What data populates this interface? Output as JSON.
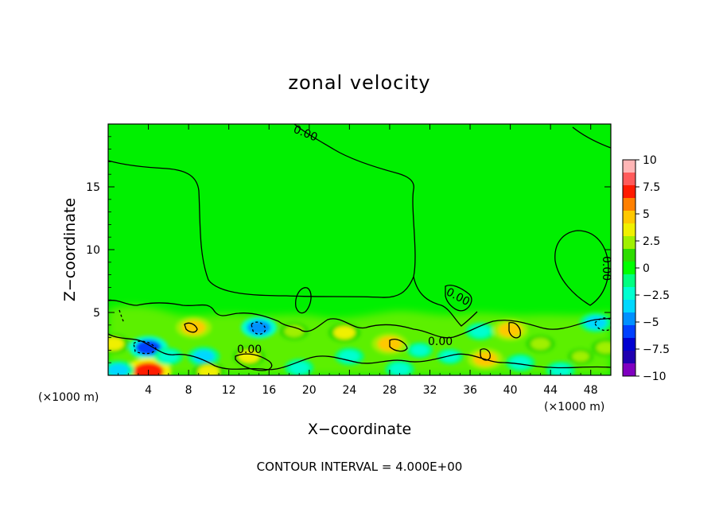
{
  "chart_data": {
    "type": "heatmap",
    "title": "zonal velocity",
    "xlabel": "X−coordinate",
    "ylabel": "Z−coordinate",
    "x_unit_left": "(×1000 m)",
    "x_unit_right": "(×1000 m)",
    "xlim": [
      0,
      50
    ],
    "ylim": [
      0,
      20
    ],
    "x_ticks": [
      4,
      8,
      12,
      16,
      20,
      24,
      28,
      32,
      36,
      40,
      44,
      48
    ],
    "y_ticks": [
      5,
      10,
      15
    ],
    "colorbar": {
      "ticks": [
        "10",
        "7.5",
        "5",
        "2.5",
        "0",
        "−2.5",
        "−5",
        "−7.5",
        "−10"
      ],
      "colors": [
        "#ffb6b6",
        "#ff5a5a",
        "#ff1a00",
        "#ff8000",
        "#ffc800",
        "#f0f000",
        "#a0f000",
        "#2ddc00",
        "#00ff00",
        "#00ff80",
        "#00ffd0",
        "#00d8ff",
        "#0090ff",
        "#0040ff",
        "#0000d0",
        "#2000b0",
        "#8000c0"
      ]
    },
    "contour_labels": [
      "0.00",
      "0.00",
      "0.00",
      "0.00",
      "0.00"
    ],
    "footer": "CONTOUR INTERVAL = 4.000E+00",
    "blobs": [
      {
        "x": 4,
        "z": 2.2,
        "v": -6
      },
      {
        "x": 4,
        "z": 0.3,
        "v": 8
      },
      {
        "x": 1,
        "z": 0.4,
        "v": -4
      },
      {
        "x": 0.5,
        "z": 2.5,
        "v": 4
      },
      {
        "x": 8.5,
        "z": 3.8,
        "v": 5
      },
      {
        "x": 9.5,
        "z": 1.5,
        "v": -4
      },
      {
        "x": 6,
        "z": 1.5,
        "v": -3
      },
      {
        "x": 10,
        "z": 0.3,
        "v": 4
      },
      {
        "x": 15,
        "z": 3.8,
        "v": -5
      },
      {
        "x": 14,
        "z": 1.5,
        "v": 4
      },
      {
        "x": 18.5,
        "z": 3.5,
        "v": 3
      },
      {
        "x": 19,
        "z": 0.6,
        "v": -3
      },
      {
        "x": 23.5,
        "z": 3.4,
        "v": 4
      },
      {
        "x": 24,
        "z": 1.5,
        "v": -3
      },
      {
        "x": 28,
        "z": 2.5,
        "v": 5
      },
      {
        "x": 29,
        "z": 0.5,
        "v": -3
      },
      {
        "x": 31,
        "z": 2.0,
        "v": -2
      },
      {
        "x": 34,
        "z": 1.5,
        "v": -2
      },
      {
        "x": 37,
        "z": 3.5,
        "v": -3
      },
      {
        "x": 37.5,
        "z": 1.3,
        "v": 5
      },
      {
        "x": 40,
        "z": 3.6,
        "v": 5
      },
      {
        "x": 41,
        "z": 1.0,
        "v": -3
      },
      {
        "x": 43,
        "z": 2.5,
        "v": 3
      },
      {
        "x": 45,
        "z": 0.4,
        "v": -3
      },
      {
        "x": 48.5,
        "z": 4.2,
        "v": -4
      },
      {
        "x": 49.5,
        "z": 2.2,
        "v": 3
      },
      {
        "x": 47,
        "z": 1.5,
        "v": 2
      }
    ]
  }
}
